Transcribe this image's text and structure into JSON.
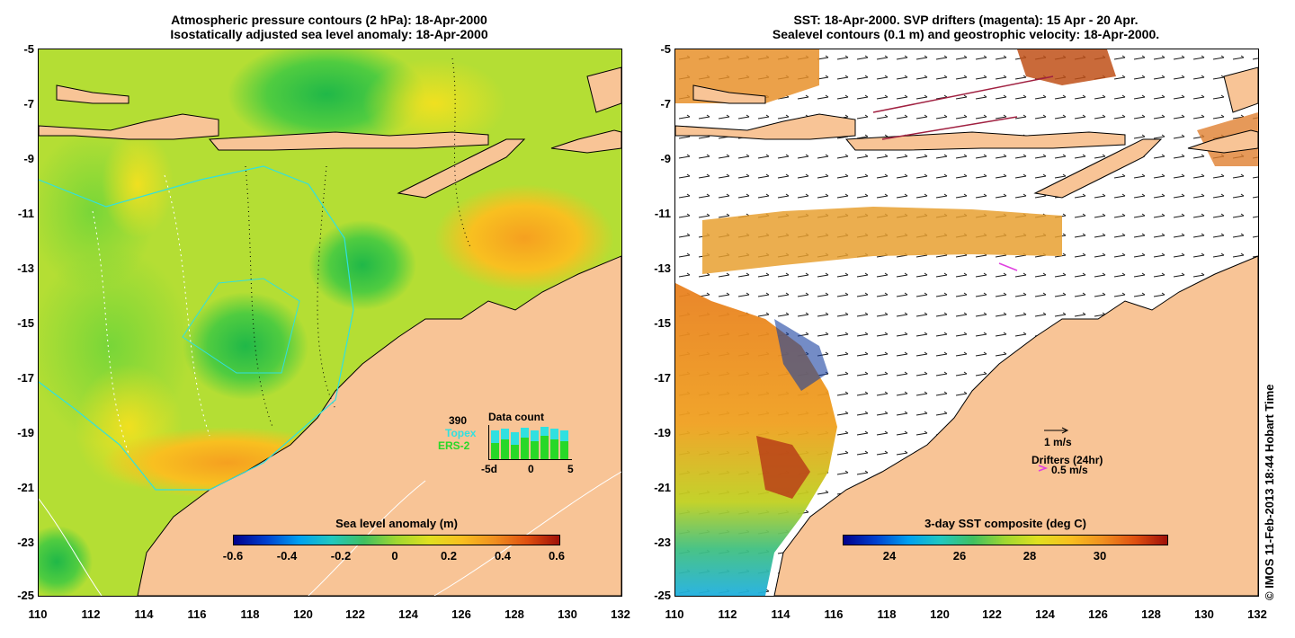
{
  "left_panel": {
    "title_line1": "Atmospheric pressure contours (2 hPa): 18-Apr-2000",
    "title_line2": "Isostatically adjusted sea level anomaly: 18-Apr-2000",
    "colorbar_label": "Sea level anomaly (m)",
    "colorbar_ticks": [
      "-0.6",
      "-0.4",
      "-0.2",
      "0",
      "0.2",
      "0.4",
      "0.6"
    ],
    "data_count": {
      "total": "390",
      "topex_label": "Topex",
      "ers_label": "ERS-2",
      "title": "Data count",
      "axis_ticks": [
        "-5d",
        "0",
        "5"
      ]
    }
  },
  "right_panel": {
    "title_line1": "SST: 18-Apr-2000. SVP drifters (magenta): 15 Apr - 20 Apr.",
    "title_line2": "Sealevel contours (0.1 m) and geostrophic velocity: 18-Apr-2000.",
    "colorbar_label": "3-day SST composite (deg C)",
    "colorbar_ticks": [
      "24",
      "26",
      "28",
      "30"
    ],
    "velocity_scale_label": "1 m/s",
    "drifters_label": "Drifters (24hr)",
    "drifters_scale_label": "0.5 m/s"
  },
  "axes": {
    "y_ticks": [
      "-5",
      "-7",
      "-9",
      "-11",
      "-13",
      "-15",
      "-17",
      "-19",
      "-21",
      "-23",
      "-25"
    ],
    "x_ticks": [
      "110",
      "112",
      "114",
      "116",
      "118",
      "120",
      "122",
      "124",
      "126",
      "128",
      "130",
      "132"
    ]
  },
  "credit": "© IMOS 11-Feb-2013 18:44 Hobart Time",
  "colors": {
    "land": "#f8c496",
    "topex": "#30e0e0",
    "ers": "#28d828",
    "drifter": "#e040e0"
  }
}
